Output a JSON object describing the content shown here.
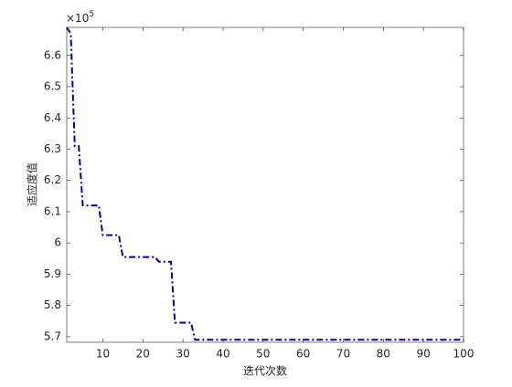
{
  "chart_data": {
    "type": "line",
    "xlabel": "迭代次数",
    "ylabel": "适应度值",
    "y_multiplier": "×10",
    "y_multiplier_exponent": "5",
    "x": [
      1,
      2,
      3,
      4,
      5,
      6,
      7,
      8,
      9,
      10,
      11,
      12,
      13,
      14,
      15,
      16,
      17,
      18,
      19,
      20,
      21,
      22,
      23,
      24,
      25,
      26,
      27,
      28,
      29,
      30,
      31,
      32,
      33,
      34,
      35,
      36,
      37,
      38,
      39,
      40,
      41,
      42,
      43,
      44,
      45,
      46,
      47,
      48,
      49,
      50,
      51,
      52,
      53,
      54,
      55,
      56,
      57,
      58,
      59,
      60,
      61,
      62,
      63,
      64,
      65,
      66,
      67,
      68,
      69,
      70,
      71,
      72,
      73,
      74,
      75,
      76,
      77,
      78,
      79,
      80,
      81,
      82,
      83,
      84,
      85,
      86,
      87,
      88,
      89,
      90,
      91,
      92,
      93,
      94,
      95,
      96,
      97,
      98,
      99,
      100
    ],
    "series": [
      {
        "color": "#0000a8",
        "values": [
          6.69,
          6.67,
          6.31,
          6.31,
          6.12,
          6.12,
          6.12,
          6.12,
          6.12,
          6.025,
          6.025,
          6.025,
          6.025,
          6.025,
          5.955,
          5.955,
          5.955,
          5.955,
          5.955,
          5.955,
          5.955,
          5.955,
          5.955,
          5.94,
          5.94,
          5.94,
          5.94,
          5.745,
          5.745,
          5.745,
          5.745,
          5.745,
          5.69,
          5.69,
          5.69,
          5.69,
          5.69,
          5.69,
          5.69,
          5.69,
          5.69,
          5.69,
          5.69,
          5.69,
          5.69,
          5.69,
          5.69,
          5.69,
          5.69,
          5.69,
          5.69,
          5.69,
          5.69,
          5.69,
          5.69,
          5.69,
          5.69,
          5.69,
          5.69,
          5.69,
          5.69,
          5.69,
          5.69,
          5.69,
          5.69,
          5.69,
          5.69,
          5.69,
          5.69,
          5.69,
          5.69,
          5.69,
          5.69,
          5.69,
          5.69,
          5.69,
          5.69,
          5.69,
          5.69,
          5.69,
          5.69,
          5.69,
          5.69,
          5.69,
          5.69,
          5.69,
          5.69,
          5.69,
          5.69,
          5.69,
          5.69,
          5.69,
          5.69,
          5.69,
          5.69,
          5.69,
          5.69,
          5.69,
          5.69,
          5.69
        ]
      }
    ],
    "xlim": [
      1,
      100
    ],
    "xticks": [
      10,
      20,
      30,
      40,
      50,
      60,
      70,
      80,
      90,
      100
    ],
    "ylim": [
      5.682,
      6.69
    ],
    "yticks": [
      5.7,
      5.8,
      5.9,
      6,
      6.1,
      6.2,
      6.3,
      6.4,
      6.5,
      6.6
    ]
  }
}
